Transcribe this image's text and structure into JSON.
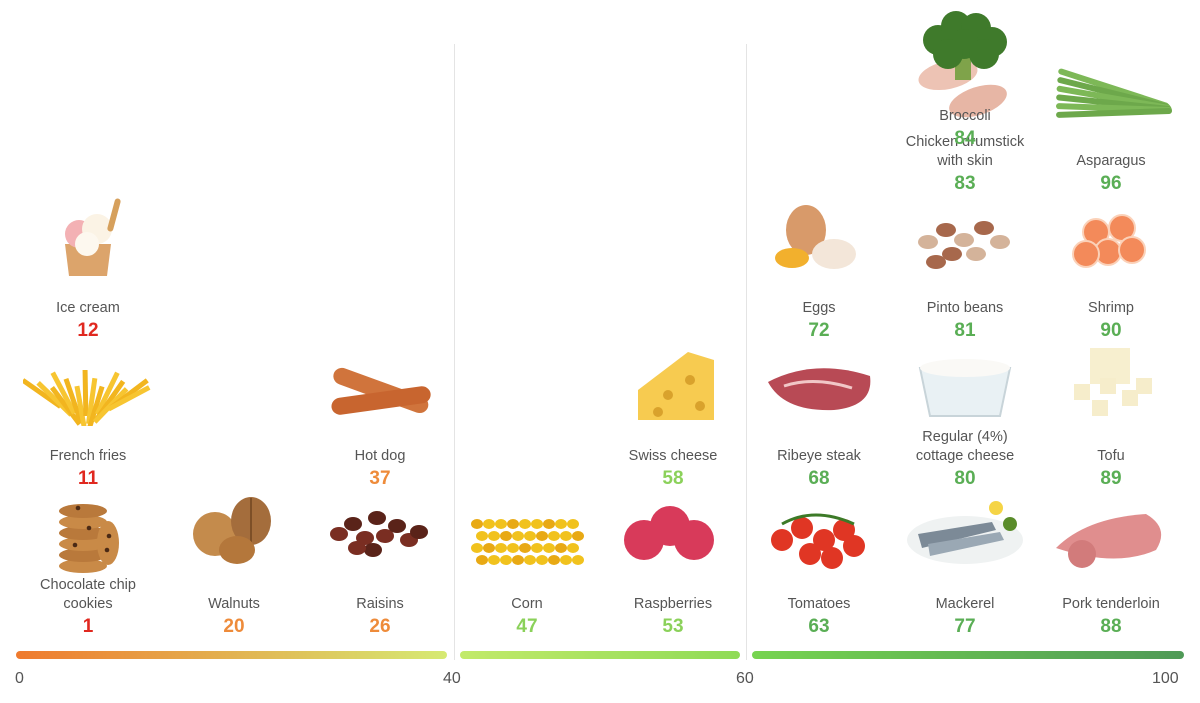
{
  "chart_data": {
    "type": "scatter",
    "title": "",
    "xlabel": "",
    "ylabel": "",
    "xlim": [
      0,
      100
    ],
    "ticks": [
      "0",
      "40",
      "60",
      "100"
    ],
    "segments": [
      {
        "from": 0,
        "to": 40,
        "color_start": "#ef7a2e",
        "color_end": "#d6ea73"
      },
      {
        "from": 40,
        "to": 60,
        "color_start": "#c2ea6a",
        "color_end": "#8fdb56"
      },
      {
        "from": 60,
        "to": 100,
        "color_start": "#76d44f",
        "color_end": "#4f9a57"
      }
    ],
    "color_scale": {
      "low": "#e0281f",
      "mid": "#ee8b3a",
      "mid_high": "#8bd15a",
      "high": "#5aae55"
    },
    "foods": [
      {
        "name": "Chocolate chip\ncookies",
        "score": 1,
        "icon": "cookie-icon"
      },
      {
        "name": "French fries",
        "score": 11,
        "icon": "fries-icon"
      },
      {
        "name": "Ice cream",
        "score": 12,
        "icon": "ice-cream-icon"
      },
      {
        "name": "Walnuts",
        "score": 20,
        "icon": "walnut-icon"
      },
      {
        "name": "Raisins",
        "score": 26,
        "icon": "raisin-icon"
      },
      {
        "name": "Hot dog",
        "score": 37,
        "icon": "hot-dog-icon"
      },
      {
        "name": "Corn",
        "score": 47,
        "icon": "corn-icon"
      },
      {
        "name": "Raspberries",
        "score": 53,
        "icon": "raspberry-icon"
      },
      {
        "name": "Swiss cheese",
        "score": 58,
        "icon": "cheese-icon"
      },
      {
        "name": "Tomatoes",
        "score": 63,
        "icon": "tomato-icon"
      },
      {
        "name": "Ribeye steak",
        "score": 68,
        "icon": "steak-icon"
      },
      {
        "name": "Eggs",
        "score": 72,
        "icon": "egg-icon"
      },
      {
        "name": "Mackerel",
        "score": 77,
        "icon": "fish-icon"
      },
      {
        "name": "Regular (4%)\ncottage cheese",
        "score": 80,
        "icon": "cottage-cheese-icon"
      },
      {
        "name": "Pinto beans",
        "score": 81,
        "icon": "beans-icon"
      },
      {
        "name": "Chicken drumstick\nwith skin",
        "score": 83,
        "icon": "drumstick-icon"
      },
      {
        "name": "Broccoli",
        "score": 84,
        "icon": "broccoli-icon"
      },
      {
        "name": "Pork tenderloin",
        "score": 88,
        "icon": "pork-icon"
      },
      {
        "name": "Tofu",
        "score": 89,
        "icon": "tofu-icon"
      },
      {
        "name": "Shrimp",
        "score": 90,
        "icon": "shrimp-icon"
      },
      {
        "name": "Asparagus",
        "score": 96,
        "icon": "asparagus-icon"
      }
    ]
  }
}
